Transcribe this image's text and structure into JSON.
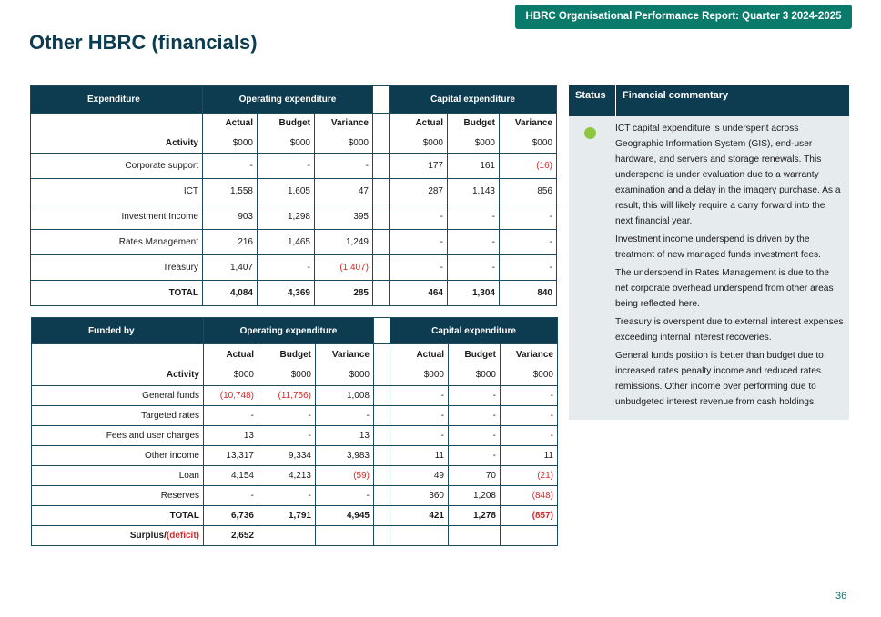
{
  "banner": "HBRC Organisational Performance Report: Quarter 3 2024-2025",
  "title": "Other HBRC (financials)",
  "page_number": "36",
  "status_color": "#8dc63f",
  "expenditure": {
    "header": {
      "first": "Expenditure",
      "opex": "Operating expenditure",
      "capex": "Capital expenditure"
    },
    "subheaders": {
      "actual": "Actual",
      "budget": "Budget",
      "variance": "Variance",
      "activity": "Activity",
      "unit": "$000"
    },
    "rows": [
      {
        "label": "Corporate support",
        "op_actual": "-",
        "op_budget": "-",
        "op_variance": "-",
        "cap_actual": "177",
        "cap_budget": "161",
        "cap_variance": "(16)"
      },
      {
        "label": "ICT",
        "op_actual": "1,558",
        "op_budget": "1,605",
        "op_variance": "47",
        "cap_actual": "287",
        "cap_budget": "1,143",
        "cap_variance": "856"
      },
      {
        "label": "Investment Income",
        "op_actual": "903",
        "op_budget": "1,298",
        "op_variance": "395",
        "cap_actual": "-",
        "cap_budget": "-",
        "cap_variance": "-"
      },
      {
        "label": "Rates Management",
        "op_actual": "216",
        "op_budget": "1,465",
        "op_variance": "1,249",
        "cap_actual": "-",
        "cap_budget": "-",
        "cap_variance": "-"
      },
      {
        "label": "Treasury",
        "op_actual": "1,407",
        "op_budget": "-",
        "op_variance": "(1,407)",
        "cap_actual": "-",
        "cap_budget": "-",
        "cap_variance": "-"
      }
    ],
    "total": {
      "label": "TOTAL",
      "op_actual": "4,084",
      "op_budget": "4,369",
      "op_variance": "285",
      "cap_actual": "464",
      "cap_budget": "1,304",
      "cap_variance": "840"
    }
  },
  "funded": {
    "header": {
      "first": "Funded by",
      "opex": "Operating expenditure",
      "capex": "Capital expenditure"
    },
    "subheaders": {
      "actual": "Actual",
      "budget": "Budget",
      "variance": "Variance",
      "activity": "Activity",
      "unit": "$000"
    },
    "rows": [
      {
        "label": "General funds",
        "op_actual": "(10,748)",
        "op_budget": "(11,756)",
        "op_variance": "1,008",
        "cap_actual": "-",
        "cap_budget": "-",
        "cap_variance": "-"
      },
      {
        "label": "Targeted rates",
        "op_actual": "-",
        "op_budget": "-",
        "op_variance": "-",
        "cap_actual": "-",
        "cap_budget": "-",
        "cap_variance": "-"
      },
      {
        "label": "Fees and user charges",
        "op_actual": "13",
        "op_budget": "-",
        "op_variance": "13",
        "cap_actual": "-",
        "cap_budget": "-",
        "cap_variance": "-"
      },
      {
        "label": "Other income",
        "op_actual": "13,317",
        "op_budget": "9,334",
        "op_variance": "3,983",
        "cap_actual": "11",
        "cap_budget": "-",
        "cap_variance": "11"
      },
      {
        "label": "Loan",
        "op_actual": "4,154",
        "op_budget": "4,213",
        "op_variance": "(59)",
        "cap_actual": "49",
        "cap_budget": "70",
        "cap_variance": "(21)"
      },
      {
        "label": "Reserves",
        "op_actual": "-",
        "op_budget": "-",
        "op_variance": "-",
        "cap_actual": "360",
        "cap_budget": "1,208",
        "cap_variance": "(848)"
      }
    ],
    "total": {
      "label": "TOTAL",
      "op_actual": "6,736",
      "op_budget": "1,791",
      "op_variance": "4,945",
      "cap_actual": "421",
      "cap_budget": "1,278",
      "cap_variance": "(857)"
    },
    "surplus": {
      "label_a": "Surplus/",
      "label_b": "(deficit)",
      "value": "2,652"
    }
  },
  "commentary": {
    "status_header": "Status",
    "header": "Financial commentary",
    "paragraphs": [
      "ICT capital expenditure is underspent across Geographic Information System (GIS), end-user hardware, and servers and storage renewals. This underspend is under evaluation due to a warranty examination and a delay in the imagery purchase. As a result, this will likely require a carry forward into the next financial year.",
      "Investment income underspend is driven by the treatment of new managed funds investment fees.",
      "The underspend in Rates Management is due to the net corporate overhead underspend from other areas being reflected here.",
      "Treasury is overspent due to external interest expenses exceeding internal interest recoveries.",
      "General funds position is better than budget due to increased rates penalty income and reduced rates remissions. Other income over performing due to unbudgeted interest revenue from cash holdings."
    ]
  }
}
